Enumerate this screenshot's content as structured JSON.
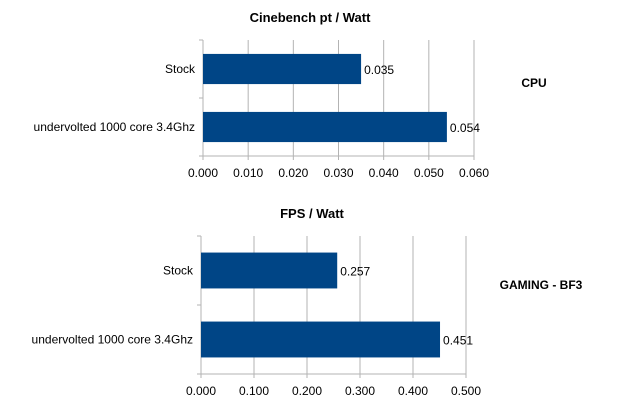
{
  "chart_data": [
    {
      "type": "bar",
      "orientation": "horizontal",
      "title": "Cinebench pt / Watt",
      "side_label": "CPU",
      "categories": [
        "Stock",
        "undervolted 1000 core 3.4Ghz"
      ],
      "values": [
        0.035,
        0.054
      ],
      "value_labels": [
        "0.035",
        "0.054"
      ],
      "xlim": [
        0,
        0.06
      ],
      "xticks": [
        "0.000",
        "0.010",
        "0.020",
        "0.030",
        "0.040",
        "0.050",
        "0.060"
      ],
      "grid": true,
      "bar_color": "#004586"
    },
    {
      "type": "bar",
      "orientation": "horizontal",
      "title": "FPS / Watt",
      "side_label": "GAMING - BF3",
      "categories": [
        "Stock",
        "undervolted 1000 core 3.4Ghz"
      ],
      "values": [
        0.257,
        0.451
      ],
      "value_labels": [
        "0.257",
        "0.451"
      ],
      "xlim": [
        0,
        0.5
      ],
      "xticks": [
        "0.000",
        "0.100",
        "0.200",
        "0.300",
        "0.400",
        "0.500"
      ],
      "grid": true,
      "bar_color": "#004586"
    }
  ]
}
